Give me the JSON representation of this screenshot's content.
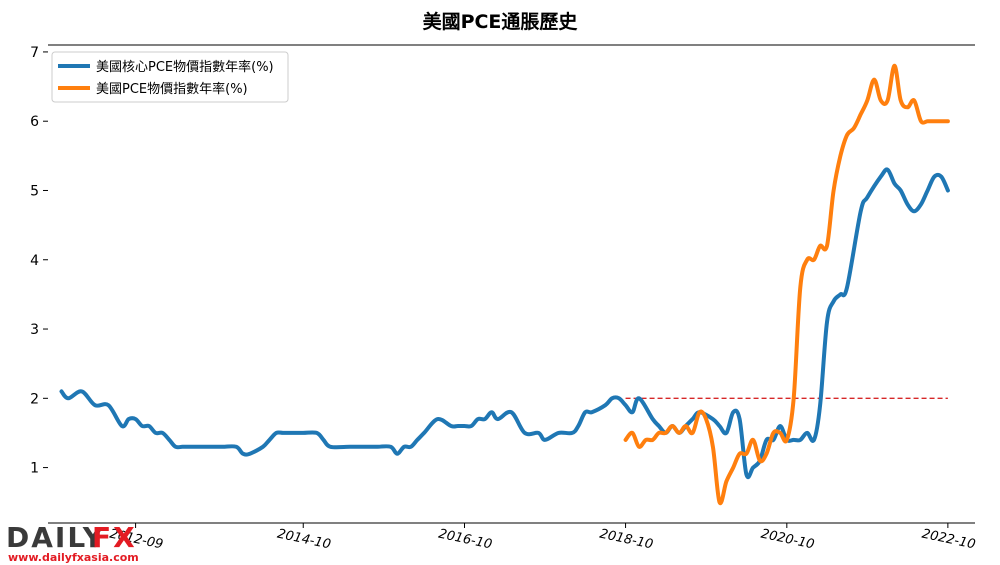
{
  "chart_data": {
    "type": "line",
    "title": "美國PCE通脹歷史",
    "xlabel": "",
    "ylabel": "",
    "ylim": [
      0.2,
      7.1
    ],
    "y_ticks": [
      1,
      2,
      3,
      4,
      5,
      6,
      7
    ],
    "x_ticks": [
      "2012-09",
      "2014-10",
      "2016-10",
      "2018-10",
      "2020-10",
      "2022-10"
    ],
    "legend_position": "top-left",
    "reference_line": {
      "y": 2,
      "x_start": "2018-10",
      "x_end": "2022-10",
      "color": "#d62728",
      "style": "dashed"
    },
    "series": [
      {
        "name": "美國核心PCE物價指數年率(%)",
        "color": "#1f77b4",
        "x": [
          "2011-10",
          "2011-11",
          "2012-01",
          "2012-03",
          "2012-05",
          "2012-07",
          "2012-08",
          "2012-09",
          "2012-10",
          "2012-11",
          "2012-12",
          "2013-01",
          "2013-02",
          "2013-03",
          "2013-04",
          "2013-05",
          "2013-06",
          "2013-08",
          "2013-10",
          "2013-12",
          "2014-01",
          "2014-02",
          "2014-04",
          "2014-05",
          "2014-06",
          "2014-07",
          "2014-08",
          "2014-10",
          "2014-12",
          "2015-01",
          "2015-02",
          "2015-05",
          "2015-07",
          "2015-08",
          "2015-09",
          "2015-11",
          "2015-12",
          "2016-01",
          "2016-02",
          "2016-03",
          "2016-04",
          "2016-06",
          "2016-08",
          "2016-09",
          "2016-10",
          "2016-11",
          "2016-12",
          "2017-01",
          "2017-02",
          "2017-03",
          "2017-05",
          "2017-07",
          "2017-09",
          "2017-10",
          "2017-12",
          "2018-02",
          "2018-03",
          "2018-04",
          "2018-05",
          "2018-07",
          "2018-08",
          "2018-09",
          "2018-10",
          "2018-11",
          "2018-12",
          "2019-02",
          "2019-03",
          "2019-04",
          "2019-05",
          "2019-06",
          "2019-07",
          "2019-08",
          "2019-09",
          "2019-11",
          "2019-12",
          "2020-01",
          "2020-02",
          "2020-03",
          "2020-04",
          "2020-05",
          "2020-06",
          "2020-07",
          "2020-08",
          "2020-09",
          "2020-10",
          "2020-11",
          "2020-12",
          "2021-01",
          "2021-02",
          "2021-03",
          "2021-04",
          "2021-05",
          "2021-06",
          "2021-07",
          "2021-09",
          "2021-10",
          "2021-12",
          "2022-01",
          "2022-02",
          "2022-03",
          "2022-04",
          "2022-05",
          "2022-06",
          "2022-07",
          "2022-08",
          "2022-09",
          "2022-10"
        ],
        "values": [
          2.1,
          2.0,
          2.1,
          1.9,
          1.9,
          1.6,
          1.7,
          1.7,
          1.6,
          1.6,
          1.5,
          1.5,
          1.4,
          1.3,
          1.3,
          1.3,
          1.3,
          1.3,
          1.3,
          1.3,
          1.2,
          1.2,
          1.3,
          1.4,
          1.5,
          1.5,
          1.5,
          1.5,
          1.5,
          1.4,
          1.3,
          1.3,
          1.3,
          1.3,
          1.3,
          1.3,
          1.2,
          1.3,
          1.3,
          1.4,
          1.5,
          1.7,
          1.6,
          1.6,
          1.6,
          1.6,
          1.7,
          1.7,
          1.8,
          1.7,
          1.8,
          1.5,
          1.5,
          1.4,
          1.5,
          1.5,
          1.6,
          1.8,
          1.8,
          1.9,
          2.0,
          2.0,
          1.9,
          1.8,
          2.0,
          1.7,
          1.6,
          1.5,
          1.6,
          1.5,
          1.6,
          1.7,
          1.8,
          1.7,
          1.6,
          1.5,
          1.8,
          1.7,
          0.9,
          1.0,
          1.1,
          1.4,
          1.4,
          1.6,
          1.4,
          1.4,
          1.4,
          1.5,
          1.4,
          1.9,
          3.1,
          3.4,
          3.5,
          3.6,
          4.7,
          4.9,
          5.2,
          5.3,
          5.1,
          5.0,
          4.8,
          4.7,
          4.8,
          5.0,
          5.2,
          5.2,
          5.0
        ]
      },
      {
        "name": "美國PCE物價指數年率(%)",
        "color": "#ff7f0e",
        "x": [
          "2018-10",
          "2018-11",
          "2018-12",
          "2019-01",
          "2019-02",
          "2019-03",
          "2019-04",
          "2019-05",
          "2019-06",
          "2019-07",
          "2019-08",
          "2019-09",
          "2019-10",
          "2019-11",
          "2019-12",
          "2020-01",
          "2020-02",
          "2020-03",
          "2020-04",
          "2020-05",
          "2020-06",
          "2020-07",
          "2020-08",
          "2020-09",
          "2020-10",
          "2020-11",
          "2020-12",
          "2021-01",
          "2021-02",
          "2021-03",
          "2021-04",
          "2021-05",
          "2021-06",
          "2021-07",
          "2021-08",
          "2021-09",
          "2021-10",
          "2021-11",
          "2021-12",
          "2022-01",
          "2022-02",
          "2022-03",
          "2022-04",
          "2022-05",
          "2022-06",
          "2022-07",
          "2022-08",
          "2022-09",
          "2022-10"
        ],
        "values": [
          1.4,
          1.5,
          1.3,
          1.4,
          1.4,
          1.5,
          1.5,
          1.6,
          1.5,
          1.6,
          1.5,
          1.8,
          1.7,
          1.3,
          0.5,
          0.8,
          1.0,
          1.2,
          1.2,
          1.4,
          1.1,
          1.2,
          1.5,
          1.5,
          1.4,
          2.0,
          3.6,
          4.0,
          4.0,
          4.2,
          4.2,
          5.0,
          5.5,
          5.8,
          5.9,
          6.1,
          6.3,
          6.6,
          6.3,
          6.3,
          6.8,
          6.3,
          6.2,
          6.3,
          6.0,
          6.0,
          6.0,
          6.0,
          6.0
        ]
      }
    ]
  },
  "watermark": {
    "brand_left": "DAILY",
    "brand_right": "FX",
    "url": "www.dailyfxasia.com"
  }
}
